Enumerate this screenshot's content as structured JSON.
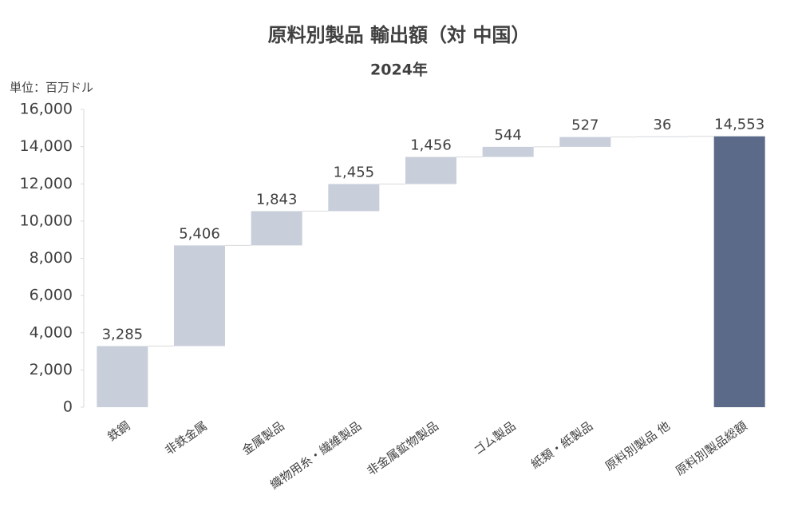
{
  "chart_data": {
    "type": "waterfall",
    "title": "原料別製品 輸出額（対 中国）",
    "subtitle": "2024年",
    "unit": "単位：百万ドル",
    "categories": [
      "鉄鋼",
      "非鉄金属",
      "金属製品",
      "織物用糸・繊維製品",
      "非金属鉱物製品",
      "ゴム製品",
      "紙類・紙製品",
      "原料別製品 他",
      "原料別製品総額"
    ],
    "values": [
      3285,
      5406,
      1843,
      1455,
      1456,
      544,
      527,
      36,
      14553
    ],
    "value_labels": [
      "3,285",
      "5,406",
      "1,843",
      "1,455",
      "1,456",
      "544",
      "527",
      "36",
      "14,553"
    ],
    "is_total": [
      false,
      false,
      false,
      false,
      false,
      false,
      false,
      false,
      true
    ],
    "color": "#c8ceda",
    "total_color": "#5b6a88",
    "ylim": [
      0,
      16000
    ],
    "yticks": [
      0,
      {
        "value": 2000,
        "label": "2,000"
      },
      {
        "value": 4000,
        "label": "4,000"
      },
      {
        "value": 6000,
        "label": "6,000"
      },
      {
        "value": 8000,
        "label": "8,000"
      },
      {
        "value": 10000,
        "label": "10,000"
      },
      {
        "value": 12000,
        "label": "12,000"
      },
      {
        "value": 14000,
        "label": "14,000"
      },
      {
        "value": 16000,
        "label": "16,000"
      }
    ]
  }
}
